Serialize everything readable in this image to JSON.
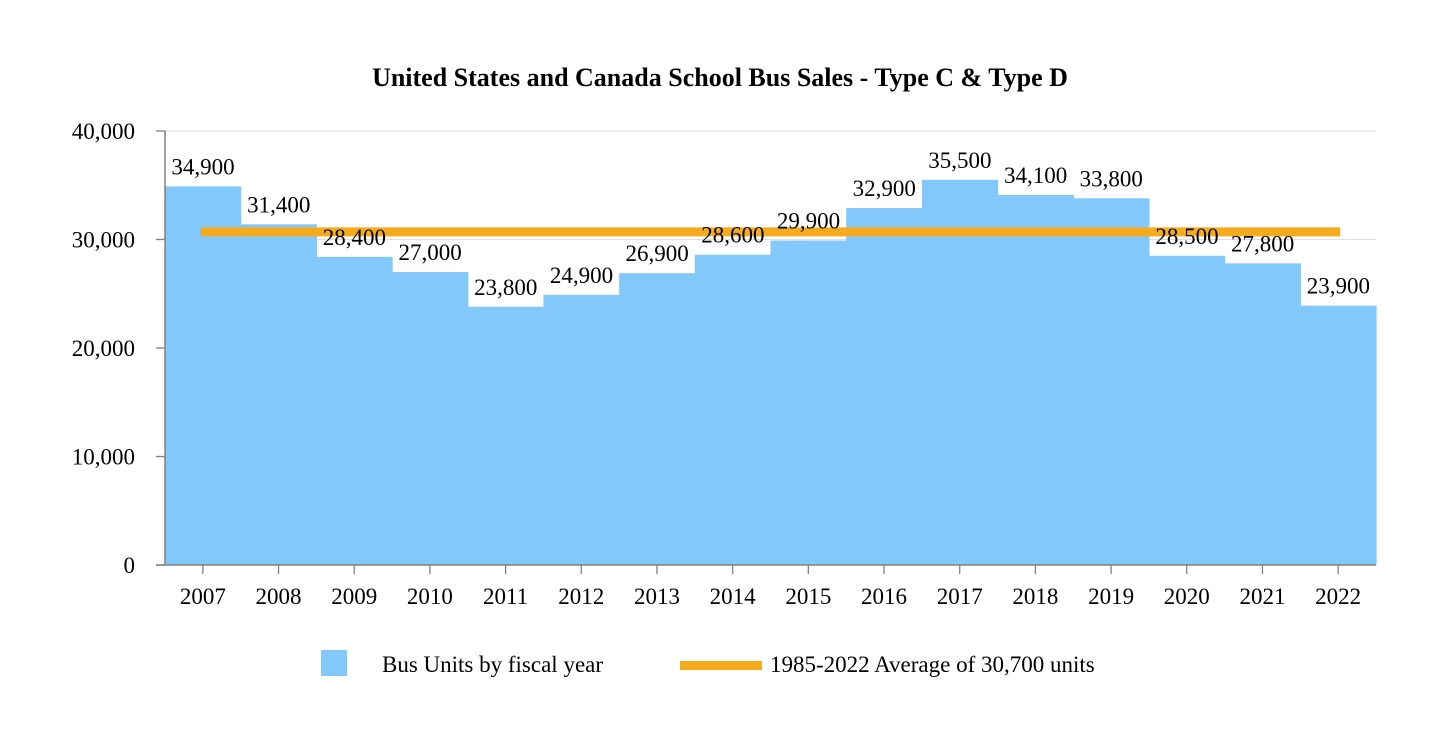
{
  "chart_data": {
    "type": "bar",
    "title": "United States and Canada School Bus Sales - Type C & Type D",
    "categories": [
      "2007",
      "2008",
      "2009",
      "2010",
      "2011",
      "2012",
      "2013",
      "2014",
      "2015",
      "2016",
      "2017",
      "2018",
      "2019",
      "2020",
      "2021",
      "2022"
    ],
    "series": [
      {
        "name": "Bus Units by fiscal year",
        "type": "bar",
        "values": [
          34900,
          31400,
          28400,
          27000,
          23800,
          24900,
          26900,
          28600,
          29900,
          32900,
          35500,
          34100,
          33800,
          28500,
          27800,
          23900
        ],
        "labels": [
          "34,900",
          "31,400",
          "28,400",
          "27,000",
          "23,800",
          "24,900",
          "26,900",
          "28,600",
          "29,900",
          "32,900",
          "35,500",
          "34,100",
          "33,800",
          "28,500",
          "27,800",
          "23,900"
        ],
        "color": "#82c8fa"
      },
      {
        "name": "1985-2022 Average of 30,700 units",
        "type": "line",
        "value": 30700,
        "color": "#f5ab1c"
      }
    ],
    "ylim": [
      0,
      40000
    ],
    "yticks": [
      0,
      10000,
      20000,
      30000,
      40000
    ],
    "ytick_labels": [
      "0",
      "10,000",
      "20,000",
      "30,000",
      "40,000"
    ],
    "xlabel": "",
    "ylabel": "",
    "grid": true,
    "legend_position": "bottom"
  }
}
